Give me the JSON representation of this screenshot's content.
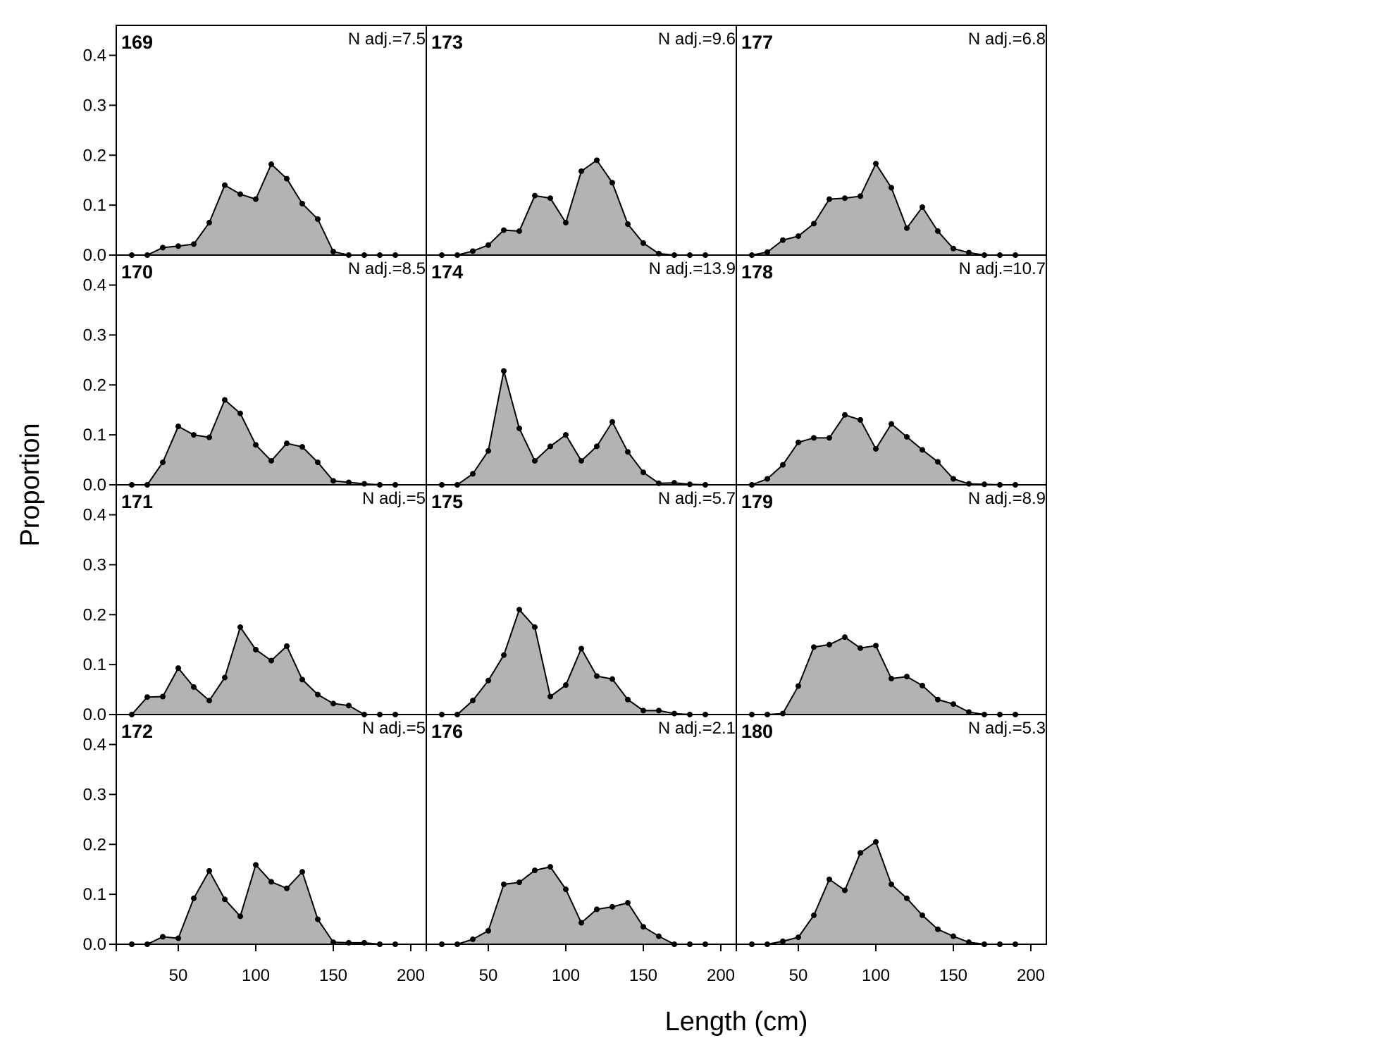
{
  "chart_data": {
    "type": "area",
    "xlabel": "Length (cm)",
    "ylabel": "Proportion",
    "xlim": [
      10,
      210
    ],
    "ylim": [
      0,
      0.46
    ],
    "x_ticks": [
      50,
      100,
      150,
      200
    ],
    "x_tick_labels": [
      "50",
      "100",
      "150",
      "200"
    ],
    "y_ticks": [
      0.0,
      0.1,
      0.2,
      0.3,
      0.4
    ],
    "y_tick_labels": [
      "0.0",
      "0.1",
      "0.2",
      "0.3",
      "0.4"
    ],
    "grid": false,
    "fill_color": "#b3b3b3",
    "line_color": "#000000",
    "x": [
      20,
      30,
      40,
      50,
      60,
      70,
      80,
      90,
      100,
      110,
      120,
      130,
      140,
      150,
      160,
      170,
      180,
      190
    ],
    "panels": [
      {
        "title": "169",
        "n_label": "N adj.=7.5",
        "values": [
          0,
          0,
          0.015,
          0.018,
          0.022,
          0.065,
          0.14,
          0.122,
          0.112,
          0.182,
          0.153,
          0.103,
          0.072,
          0.007,
          0,
          0,
          0,
          0
        ]
      },
      {
        "title": "170",
        "n_label": "N adj.=8.5",
        "values": [
          0,
          0,
          0.045,
          0.117,
          0.1,
          0.095,
          0.17,
          0.143,
          0.08,
          0.048,
          0.083,
          0.076,
          0.045,
          0.008,
          0.005,
          0.002,
          0,
          0
        ]
      },
      {
        "title": "171",
        "n_label": "N adj.=5",
        "values": [
          0,
          0.035,
          0.036,
          0.093,
          0.055,
          0.028,
          0.074,
          0.175,
          0.13,
          0.108,
          0.137,
          0.07,
          0.04,
          0.022,
          0.018,
          0,
          0,
          0
        ]
      },
      {
        "title": "172",
        "n_label": "N adj.=5",
        "values": [
          0,
          0,
          0.015,
          0.012,
          0.092,
          0.147,
          0.09,
          0.056,
          0.159,
          0.125,
          0.112,
          0.145,
          0.05,
          0.004,
          0.003,
          0.003,
          0,
          0
        ]
      },
      {
        "title": "173",
        "n_label": "N adj.=9.6",
        "values": [
          0,
          0,
          0.008,
          0.02,
          0.05,
          0.048,
          0.119,
          0.114,
          0.065,
          0.168,
          0.19,
          0.145,
          0.062,
          0.024,
          0.003,
          0,
          0,
          0
        ]
      },
      {
        "title": "174",
        "n_label": "N adj.=13.9",
        "values": [
          0,
          0,
          0.022,
          0.068,
          0.228,
          0.113,
          0.048,
          0.077,
          0.1,
          0.048,
          0.077,
          0.126,
          0.066,
          0.025,
          0.003,
          0.004,
          0.001,
          0
        ]
      },
      {
        "title": "175",
        "n_label": "N adj.=5.7",
        "values": [
          0,
          0,
          0.028,
          0.068,
          0.119,
          0.21,
          0.175,
          0.036,
          0.059,
          0.132,
          0.077,
          0.071,
          0.03,
          0.008,
          0.008,
          0.002,
          0,
          0
        ]
      },
      {
        "title": "176",
        "n_label": "N adj.=2.1",
        "values": [
          0,
          0,
          0.01,
          0.027,
          0.12,
          0.124,
          0.148,
          0.155,
          0.11,
          0.043,
          0.07,
          0.075,
          0.083,
          0.035,
          0.016,
          0,
          0,
          0
        ]
      },
      {
        "title": "177",
        "n_label": "N adj.=6.8",
        "values": [
          0,
          0.006,
          0.03,
          0.038,
          0.063,
          0.112,
          0.114,
          0.118,
          0.183,
          0.135,
          0.054,
          0.096,
          0.048,
          0.013,
          0.005,
          0,
          0,
          0
        ]
      },
      {
        "title": "178",
        "n_label": "N adj.=10.7",
        "values": [
          0,
          0.012,
          0.04,
          0.085,
          0.094,
          0.094,
          0.14,
          0.13,
          0.072,
          0.122,
          0.096,
          0.07,
          0.046,
          0.012,
          0.002,
          0.001,
          0,
          0
        ]
      },
      {
        "title": "179",
        "n_label": "N adj.=8.9",
        "values": [
          0,
          0,
          0.002,
          0.057,
          0.135,
          0.14,
          0.155,
          0.133,
          0.138,
          0.072,
          0.076,
          0.058,
          0.03,
          0.021,
          0.005,
          0,
          0,
          0
        ]
      },
      {
        "title": "180",
        "n_label": "N adj.=5.3",
        "values": [
          0,
          0,
          0.006,
          0.014,
          0.058,
          0.13,
          0.108,
          0.183,
          0.205,
          0.12,
          0.092,
          0.058,
          0.03,
          0.016,
          0.004,
          0,
          0,
          0
        ]
      }
    ]
  }
}
